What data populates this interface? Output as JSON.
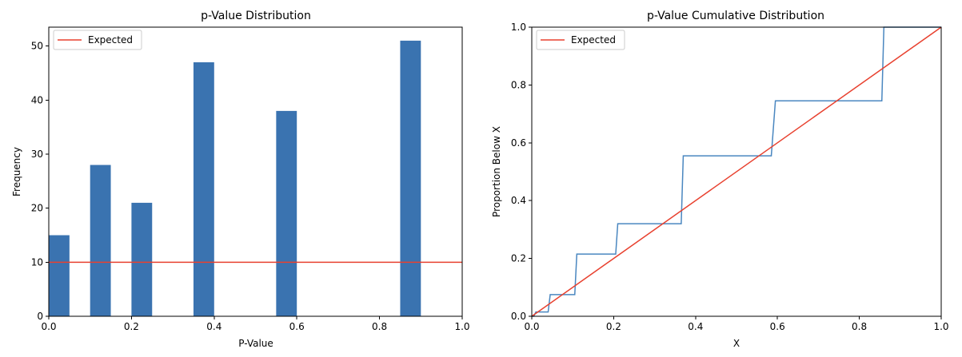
{
  "colors": {
    "bar": "#3a73b0",
    "cdf_line": "#4a87c0",
    "expected_line": "#e8412f"
  },
  "chart_data": [
    {
      "type": "bar",
      "title": "p-Value Distribution",
      "xlabel": "P-Value",
      "ylabel": "Frequency",
      "xlim": [
        0,
        1
      ],
      "ylim": [
        0,
        53.5
      ],
      "xticks": [
        0.0,
        0.2,
        0.4,
        0.6,
        0.8,
        1.0
      ],
      "xtick_labels": [
        "0.0",
        "0.2",
        "0.4",
        "0.6",
        "0.8",
        "1.0"
      ],
      "yticks": [
        0,
        10,
        20,
        30,
        40,
        50
      ],
      "ytick_labels": [
        "0",
        "10",
        "20",
        "30",
        "40",
        "50"
      ],
      "bins": [
        {
          "x_start": 0.0,
          "x_end": 0.05,
          "value": 15
        },
        {
          "x_start": 0.1,
          "x_end": 0.15,
          "value": 28
        },
        {
          "x_start": 0.2,
          "x_end": 0.25,
          "value": 21
        },
        {
          "x_start": 0.35,
          "x_end": 0.4,
          "value": 47
        },
        {
          "x_start": 0.55,
          "x_end": 0.6,
          "value": 38
        },
        {
          "x_start": 0.85,
          "x_end": 0.9,
          "value": 51
        }
      ],
      "expected": {
        "name": "Expected",
        "value": 10
      },
      "legend_position": "upper-left",
      "grid": false
    },
    {
      "type": "line",
      "title": "p-Value Cumulative Distribution",
      "xlabel": "X",
      "ylabel": "Proportion Below X",
      "xlim": [
        0,
        1
      ],
      "ylim": [
        0,
        1
      ],
      "xticks": [
        0.0,
        0.2,
        0.4,
        0.6,
        0.8,
        1.0
      ],
      "xtick_labels": [
        "0.0",
        "0.2",
        "0.4",
        "0.6",
        "0.8",
        "1.0"
      ],
      "yticks": [
        0.0,
        0.2,
        0.4,
        0.6,
        0.8,
        1.0
      ],
      "ytick_labels": [
        "0.0",
        "0.2",
        "0.4",
        "0.6",
        "0.8",
        "1.0"
      ],
      "series": [
        {
          "points": [
            [
              0.0,
              0.0
            ],
            [
              0.005,
              0.0
            ],
            [
              0.01,
              0.015
            ],
            [
              0.04,
              0.015
            ],
            [
              0.045,
              0.075
            ],
            [
              0.105,
              0.075
            ],
            [
              0.11,
              0.215
            ],
            [
              0.205,
              0.215
            ],
            [
              0.21,
              0.32
            ],
            [
              0.365,
              0.32
            ],
            [
              0.37,
              0.555
            ],
            [
              0.585,
              0.555
            ],
            [
              0.595,
              0.745
            ],
            [
              0.855,
              0.745
            ],
            [
              0.86,
              1.0
            ],
            [
              1.0,
              1.0
            ]
          ]
        },
        {
          "name": "Expected",
          "points": [
            [
              0.0,
              0.0
            ],
            [
              1.0,
              1.0
            ]
          ]
        }
      ],
      "legend_position": "upper-left",
      "grid": false
    }
  ]
}
